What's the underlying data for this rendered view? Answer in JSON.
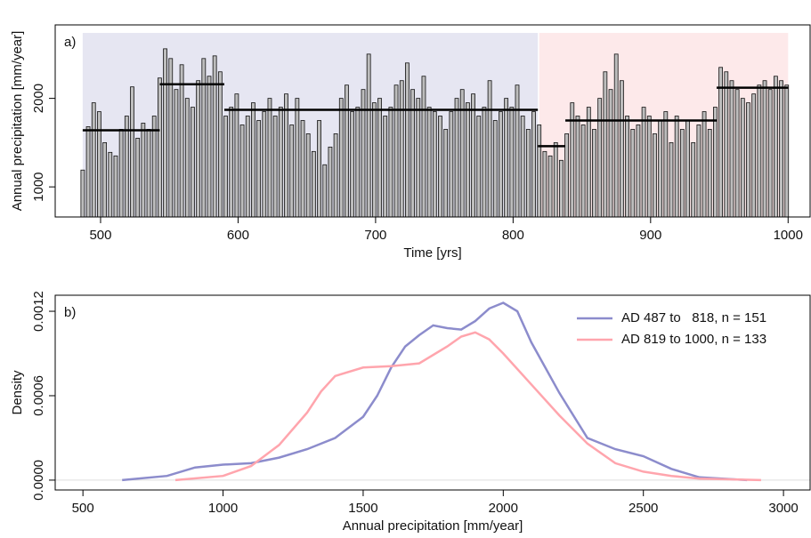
{
  "chart_data": [
    {
      "type": "bar",
      "panel_label": "a)",
      "xlabel": "Time [yrs]",
      "ylabel": "Annual precipitation [mm/year]",
      "xlim": [
        467,
        1016
      ],
      "ylim": [
        660,
        2830
      ],
      "xticks": [
        500,
        600,
        700,
        800,
        900,
        1000
      ],
      "yticks": [
        1000,
        2000
      ],
      "color": "#bdbdbd",
      "regions": [
        {
          "x": [
            487,
            818
          ],
          "color": "#e6e6f2"
        },
        {
          "x": [
            819,
            1000
          ],
          "color": "#fde9ea"
        }
      ],
      "means": [
        {
          "x": [
            487,
            543
          ],
          "value": 1640
        },
        {
          "x": [
            543,
            590
          ],
          "value": 2160
        },
        {
          "x": [
            590,
            818
          ],
          "value": 1870
        },
        {
          "x": [
            818,
            838
          ],
          "value": 1460
        },
        {
          "x": [
            838,
            948
          ],
          "value": 1750
        },
        {
          "x": [
            948,
            1000
          ],
          "value": 2120
        }
      ],
      "x": [
        487,
        491,
        495,
        499,
        503,
        507,
        511,
        515,
        519,
        523,
        527,
        531,
        535,
        539,
        543,
        547,
        551,
        555,
        559,
        563,
        567,
        571,
        575,
        579,
        583,
        587,
        591,
        595,
        599,
        603,
        607,
        611,
        615,
        619,
        623,
        627,
        631,
        635,
        639,
        643,
        647,
        651,
        655,
        659,
        663,
        667,
        671,
        675,
        679,
        683,
        687,
        691,
        695,
        699,
        703,
        707,
        711,
        715,
        719,
        723,
        727,
        731,
        735,
        739,
        743,
        747,
        751,
        755,
        759,
        763,
        767,
        771,
        775,
        779,
        783,
        787,
        791,
        795,
        799,
        803,
        807,
        811,
        815,
        819,
        823,
        827,
        831,
        835,
        839,
        843,
        847,
        851,
        855,
        859,
        863,
        867,
        871,
        875,
        879,
        883,
        887,
        891,
        895,
        899,
        903,
        907,
        911,
        915,
        919,
        923,
        927,
        931,
        935,
        939,
        943,
        947,
        951,
        955,
        959,
        963,
        967,
        971,
        975,
        979,
        983,
        987,
        991,
        995,
        999
      ],
      "values": [
        1190,
        1680,
        1950,
        1850,
        1500,
        1390,
        1350,
        1650,
        1800,
        2130,
        1550,
        1720,
        1650,
        1800,
        2230,
        2560,
        2450,
        2100,
        2380,
        2000,
        1900,
        2200,
        2450,
        2250,
        2480,
        2300,
        1800,
        1900,
        2050,
        1700,
        1800,
        1950,
        1750,
        1850,
        2000,
        1800,
        1900,
        2050,
        1700,
        2000,
        1750,
        1600,
        1400,
        1750,
        1250,
        1450,
        1600,
        2000,
        2150,
        1850,
        1900,
        2100,
        2500,
        1950,
        2000,
        1800,
        1900,
        2150,
        2200,
        2400,
        2100,
        2000,
        2250,
        1900,
        1850,
        1800,
        1650,
        1850,
        2000,
        2100,
        1950,
        2050,
        1800,
        1900,
        2200,
        1750,
        1850,
        2000,
        1900,
        2150,
        1800,
        1650,
        1850,
        1700,
        1400,
        1350,
        1500,
        1300,
        1600,
        1950,
        1800,
        1700,
        1900,
        1650,
        2000,
        2300,
        2100,
        2500,
        2200,
        1800,
        1650,
        1700,
        1900,
        1800,
        1600,
        1750,
        1850,
        1500,
        1800,
        1650,
        1750,
        1500,
        1700,
        1850,
        1650,
        1900,
        2350,
        2300,
        2200,
        2100,
        2000,
        1950,
        2050,
        2150,
        2200,
        2100,
        2250,
        2200,
        2150
      ]
    },
    {
      "type": "line",
      "panel_label": "b)",
      "xlabel": "Annual precipitation [mm/year]",
      "ylabel": "Density",
      "xlim": [
        401,
        3095
      ],
      "ylim": [
        -7e-05,
        0.001314
      ],
      "xticks": [
        500,
        1000,
        1500,
        2000,
        2500,
        3000
      ],
      "yticks": [
        {
          "value": 0,
          "label": "0.0000"
        },
        {
          "value": 0.0006,
          "label": "0.0006"
        },
        {
          "value": 0.0012,
          "label": "0.0012"
        }
      ],
      "legend": "top-right",
      "series": [
        {
          "name": "AD 487 to   818, n = 151",
          "color": "#8c8ccc",
          "x": [
            640,
            800,
            900,
            1000,
            1100,
            1200,
            1300,
            1400,
            1500,
            1550,
            1600,
            1650,
            1700,
            1750,
            1800,
            1850,
            1900,
            1950,
            2000,
            2050,
            2100,
            2200,
            2300,
            2400,
            2500,
            2600,
            2700,
            2870
          ],
          "values": [
            0,
            3e-05,
            9e-05,
            0.00011,
            0.00012,
            0.00016,
            0.00022,
            0.0003,
            0.00045,
            0.0006,
            0.0008,
            0.00095,
            0.00103,
            0.0011,
            0.00108,
            0.00107,
            0.00113,
            0.00122,
            0.00126,
            0.0012,
            0.00098,
            0.00062,
            0.0003,
            0.00022,
            0.00017,
            8e-05,
            2e-05,
            0
          ]
        },
        {
          "name": "AD 819 to 1000, n = 133",
          "color": "#ffa5ad",
          "x": [
            830,
            1000,
            1100,
            1200,
            1300,
            1350,
            1400,
            1500,
            1600,
            1700,
            1800,
            1850,
            1900,
            1950,
            2000,
            2100,
            2200,
            2300,
            2400,
            2500,
            2600,
            2700,
            2920
          ],
          "values": [
            0,
            3e-05,
            0.0001,
            0.00025,
            0.00048,
            0.00063,
            0.00074,
            0.0008,
            0.00081,
            0.00083,
            0.00095,
            0.00102,
            0.00105,
            0.001,
            0.0009,
            0.00068,
            0.00046,
            0.00026,
            0.00012,
            6e-05,
            3e-05,
            1e-05,
            0
          ]
        }
      ]
    }
  ]
}
